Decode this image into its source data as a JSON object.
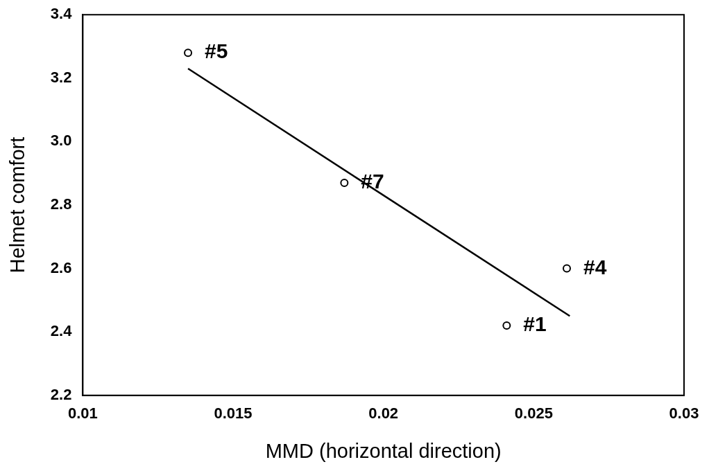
{
  "chart_data": {
    "type": "scatter",
    "xlabel": "MMD (horizontal direction)",
    "ylabel": "Helmet comfort",
    "xlim": [
      0.01,
      0.03
    ],
    "xticks": [
      0.01,
      0.015,
      0.02,
      0.025,
      0.03
    ],
    "ylim": [
      2.2,
      3.4
    ],
    "yticks": [
      2.2,
      2.4,
      2.6,
      2.8,
      {
        "value": 3,
        "label": "3.0"
      },
      3.2,
      3.4
    ],
    "grid": false,
    "legend": false,
    "marker": "circle",
    "series": [
      {
        "type": "scatter",
        "color": "#000000",
        "x": [
          0.0135,
          0.0187,
          0.0261,
          0.0241
        ],
        "values": [
          3.28,
          2.87,
          2.6,
          2.42
        ]
      },
      {
        "type": "line",
        "color": "#000000",
        "marker": "none",
        "line_style": "solid",
        "x": [
          0.0135,
          0.0262
        ],
        "values": [
          3.23,
          2.45
        ]
      }
    ],
    "annotations": [
      {
        "text": "#5",
        "x": 0.0135,
        "y": 3.28
      },
      {
        "text": "#7",
        "x": 0.0187,
        "y": 2.87
      },
      {
        "text": "#4",
        "x": 0.0261,
        "y": 2.6
      },
      {
        "text": "#1",
        "x": 0.0241,
        "y": 2.42
      }
    ]
  }
}
